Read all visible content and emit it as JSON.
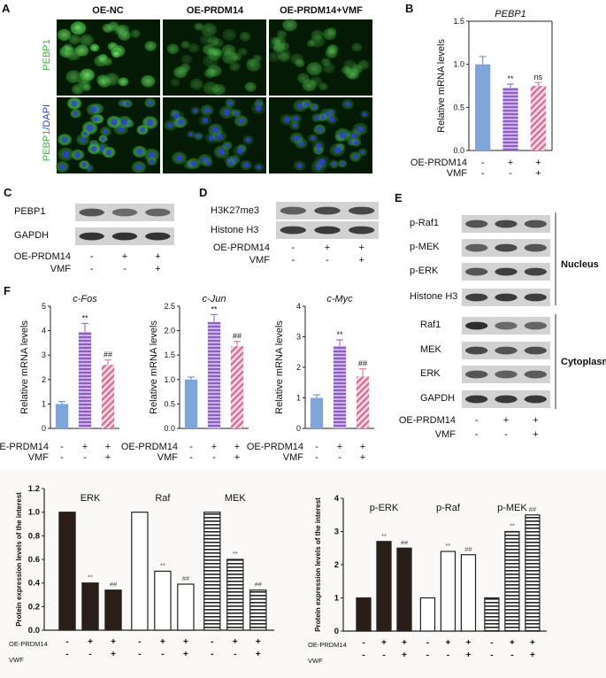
{
  "panels": {
    "A": "A",
    "B": "B",
    "C": "C",
    "D": "D",
    "E": "E",
    "F": "F"
  },
  "panel_a": {
    "columns": [
      "OE-NC",
      "OE-PRDM14",
      "OE-PRDM14+VMF"
    ],
    "row1_label": "PEBP1",
    "row2_label_a": "PEBP1",
    "row2_label_b": "/DAPI",
    "stain_colors": {
      "green": "#2fb830",
      "blue": "#2a3fd0"
    }
  },
  "panel_b": {
    "title": "PEBP1",
    "ylabel": "Relative mRNA levels",
    "cond_rows": [
      {
        "label": "OE-PRDM14",
        "marks": [
          "-",
          "+",
          "+"
        ]
      },
      {
        "label": "VMF",
        "marks": [
          "-",
          "-",
          "+"
        ]
      }
    ]
  },
  "panel_c": {
    "bands": [
      "PEBP1",
      "GAPDH"
    ],
    "cond_rows": [
      {
        "label": "OE-PRDM14",
        "marks": [
          "-",
          "+",
          "+"
        ]
      },
      {
        "label": "VMF",
        "marks": [
          "-",
          "-",
          "+"
        ]
      }
    ]
  },
  "panel_d": {
    "bands": [
      "H3K27me3",
      "Histone H3"
    ],
    "cond_rows": [
      {
        "label": "OE-PRDM14",
        "marks": [
          "-",
          "+",
          "+"
        ]
      },
      {
        "label": "VMF",
        "marks": [
          "-",
          "-",
          "+"
        ]
      }
    ]
  },
  "panel_e": {
    "nucleus_bands": [
      "p-Raf1",
      "p-MEK",
      "p-ERK",
      "Histone H3"
    ],
    "cytoplasm_bands": [
      "Raf1",
      "MEK",
      "ERK",
      "GAPDH"
    ],
    "nucleus_label": "Nucleus",
    "cytoplasm_label": "Cytoplasm",
    "cond_rows": [
      {
        "label": "OE-PRDM14",
        "marks": [
          "-",
          "+",
          "+"
        ]
      },
      {
        "label": "VMF",
        "marks": [
          "-",
          "-",
          "+"
        ]
      }
    ]
  },
  "panel_f_conditions": [
    {
      "label": "OE-PRDM14",
      "marks": [
        "-",
        "+",
        "+"
      ]
    },
    {
      "label": "VMF",
      "marks": [
        "-",
        "-",
        "+"
      ]
    }
  ],
  "bottom_left_conditions": [
    {
      "label": "OE-PRDM14",
      "marks": [
        "-",
        "+",
        "+",
        "-",
        "+",
        "+",
        "-",
        "+",
        "+"
      ]
    },
    {
      "label": "VWF",
      "marks": [
        "-",
        "-",
        "+",
        "-",
        "-",
        "+",
        "-",
        "-",
        "+"
      ]
    }
  ],
  "bottom_right_conditions": [
    {
      "label": "OE-PRDM14",
      "marks": [
        "-",
        "+",
        "+",
        "-",
        "+",
        "+",
        "-",
        "+",
        "+"
      ]
    },
    {
      "label": "VWF",
      "marks": [
        "-",
        "-",
        "+",
        "-",
        "-",
        "+",
        "-",
        "-",
        "+"
      ]
    }
  ],
  "chart_data": [
    {
      "id": "B",
      "type": "bar",
      "title": "PEBP1",
      "ylabel": "Relative mRNA levels",
      "ylim": [
        0,
        1.5
      ],
      "yticks": [
        0,
        0.5,
        1.0,
        1.5
      ],
      "ytick_labels": [
        "0.0",
        "0.5",
        "1.0",
        "1.5"
      ],
      "values": [
        1.0,
        0.73,
        0.75
      ],
      "errors": [
        0.09,
        0.04,
        0.04
      ],
      "annotations": [
        "",
        "**",
        "ns"
      ],
      "colors": [
        "#7fa6d8",
        "#9b72c4",
        "#d98aa8"
      ],
      "fills": [
        "solid",
        "stripe",
        "stripe"
      ]
    },
    {
      "id": "F1",
      "type": "bar",
      "title": "c-Fos",
      "ylabel": "Relative mRNA levels",
      "ylim": [
        0,
        5
      ],
      "yticks": [
        0,
        1,
        2,
        3,
        4,
        5
      ],
      "ytick_labels": [
        "0",
        "1",
        "2",
        "3",
        "4",
        "5"
      ],
      "values": [
        1.0,
        3.95,
        2.6
      ],
      "errors": [
        0.1,
        0.35,
        0.2
      ],
      "annotations": [
        "",
        "**",
        "##"
      ],
      "colors": [
        "#7fa6d8",
        "#9b72c4",
        "#d98aa8"
      ],
      "fills": [
        "solid",
        "stripe",
        "stripe"
      ]
    },
    {
      "id": "F2",
      "type": "bar",
      "title": "c-Jun",
      "ylabel": "Relative mRNA levels",
      "ylim": [
        0,
        2.5
      ],
      "yticks": [
        0,
        0.5,
        1.0,
        1.5,
        2.0,
        2.5
      ],
      "ytick_labels": [
        "0.0",
        "0.5",
        "1.0",
        "1.5",
        "2.0",
        "2.5"
      ],
      "values": [
        1.0,
        2.18,
        1.68
      ],
      "errors": [
        0.05,
        0.15,
        0.1
      ],
      "annotations": [
        "",
        "**",
        "##"
      ],
      "colors": [
        "#7fa6d8",
        "#9b72c4",
        "#d98aa8"
      ],
      "fills": [
        "solid",
        "stripe",
        "stripe"
      ]
    },
    {
      "id": "F3",
      "type": "bar",
      "title": "c-Myc",
      "ylabel": "Relative mRNA levels",
      "ylim": [
        0,
        4
      ],
      "yticks": [
        0,
        1,
        2,
        3,
        4
      ],
      "ytick_labels": [
        "0",
        "1",
        "2",
        "3",
        "4"
      ],
      "values": [
        1.0,
        2.7,
        1.7
      ],
      "errors": [
        0.1,
        0.2,
        0.25
      ],
      "annotations": [
        "",
        "**",
        "##"
      ],
      "colors": [
        "#7fa6d8",
        "#9b72c4",
        "#d98aa8"
      ],
      "fills": [
        "solid",
        "stripe",
        "stripe"
      ]
    },
    {
      "id": "G1",
      "type": "bar",
      "ylabel": "Protein expression levels of the interest",
      "ylim": [
        0,
        1.2
      ],
      "yticks": [
        0,
        0.2,
        0.4,
        0.6,
        0.8,
        1.0,
        1.2
      ],
      "ytick_labels": [
        "0.0",
        "0.2",
        "0.4",
        "0.6",
        "0.8",
        "1.0",
        "1.2"
      ],
      "groups": [
        {
          "name": "ERK",
          "values": [
            1.0,
            0.4,
            0.34
          ],
          "fill": "solid",
          "annotations": [
            "",
            "**",
            "##"
          ]
        },
        {
          "name": "Raf",
          "values": [
            1.0,
            0.5,
            0.39
          ],
          "fill": "open",
          "annotations": [
            "",
            "**",
            "##"
          ]
        },
        {
          "name": "MEK",
          "values": [
            1.0,
            0.6,
            0.34
          ],
          "fill": "hstripe",
          "annotations": [
            "",
            "**",
            "##"
          ]
        }
      ]
    },
    {
      "id": "G2",
      "type": "bar",
      "ylabel": "Protein expression levels of the interest",
      "ylim": [
        0,
        4
      ],
      "yticks": [
        0,
        1,
        2,
        3,
        4
      ],
      "ytick_labels": [
        "0",
        "1",
        "2",
        "3",
        "4"
      ],
      "groups": [
        {
          "name": "p-ERK",
          "values": [
            1.0,
            2.7,
            2.5
          ],
          "fill": "solid",
          "annotations": [
            "",
            "**",
            "##"
          ]
        },
        {
          "name": "p-Raf",
          "values": [
            1.0,
            2.4,
            2.3
          ],
          "fill": "open",
          "annotations": [
            "",
            "**",
            "##"
          ]
        },
        {
          "name": "p-MEK",
          "values": [
            1.0,
            3.0,
            3.5
          ],
          "fill": "hstripe",
          "annotations": [
            "",
            "**",
            "##"
          ]
        }
      ]
    }
  ]
}
